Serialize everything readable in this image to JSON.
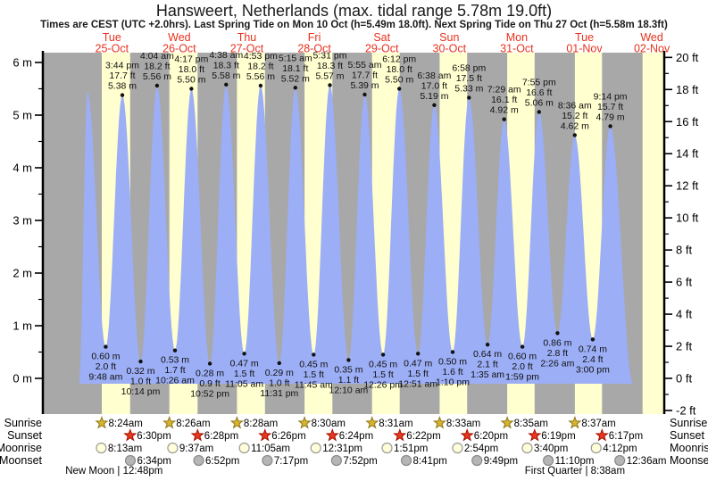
{
  "chart_data": {
    "type": "area",
    "title": "Hansweert, Netherlands (max. tidal range 5.78m 19.0ft)",
    "subtitle": "Times are CEST (UTC +2.0hrs). Last Spring Tide on Mon 10 Oct (h=5.49m 18.0ft). Next Spring Tide on Thu 27 Oct (h=5.58m 18.3ft)",
    "time_origin": "25-Oct 00:00",
    "hours_domain": [
      -12.5,
      208.4
    ],
    "x_axis": {
      "days": [
        {
          "weekday": "Tue",
          "date": "25-Oct"
        },
        {
          "weekday": "Wed",
          "date": "26-Oct"
        },
        {
          "weekday": "Thu",
          "date": "27-Oct"
        },
        {
          "weekday": "Fri",
          "date": "28-Oct"
        },
        {
          "weekday": "Sat",
          "date": "29-Oct"
        },
        {
          "weekday": "Sun",
          "date": "30-Oct"
        },
        {
          "weekday": "Mon",
          "date": "31-Oct"
        },
        {
          "weekday": "Tue",
          "date": "01-Nov"
        },
        {
          "weekday": "Wed",
          "date": "02-Nov"
        }
      ]
    },
    "y_axis_left": {
      "unit": "m",
      "ticks": [
        6,
        5,
        4,
        3,
        2,
        1,
        0
      ],
      "minor_step": 0.5
    },
    "y_axis_right": {
      "unit": "ft",
      "ticks": [
        20,
        18,
        16,
        14,
        12,
        10,
        8,
        6,
        4,
        2,
        0,
        -2
      ],
      "minor_step": 1
    },
    "tide_events": [
      {
        "t": 0.3,
        "type": "edge",
        "m": -0.1
      },
      {
        "t": 3.33,
        "type": "high",
        "m": 5.44
      },
      {
        "t": 9.8,
        "type": "low",
        "m": 0.6,
        "ft": 2.0,
        "time": "9:48 am"
      },
      {
        "t": 15.73,
        "type": "high",
        "m": 5.38,
        "ft": 17.7,
        "time": "3:44 pm"
      },
      {
        "t": 22.23,
        "type": "low",
        "m": 0.32,
        "ft": 1.0,
        "time": "10:14 pm"
      },
      {
        "t": 28.07,
        "type": "high",
        "m": 5.56,
        "ft": 18.2,
        "time": "4:04 am"
      },
      {
        "t": 34.43,
        "type": "low",
        "m": 0.53,
        "ft": 1.7,
        "time": "10:26 am"
      },
      {
        "t": 40.28,
        "type": "high",
        "m": 5.5,
        "ft": 18.0,
        "time": "4:17 pm"
      },
      {
        "t": 46.87,
        "type": "low",
        "m": 0.28,
        "ft": 0.9,
        "time": "10:52 pm"
      },
      {
        "t": 52.63,
        "type": "high",
        "m": 5.58,
        "ft": 18.3,
        "time": "4:38 am"
      },
      {
        "t": 59.08,
        "type": "low",
        "m": 0.47,
        "ft": 1.5,
        "time": "11:05 am"
      },
      {
        "t": 64.88,
        "type": "high",
        "m": 5.56,
        "ft": 18.2,
        "time": "4:53 pm"
      },
      {
        "t": 71.52,
        "type": "low",
        "m": 0.29,
        "ft": 1.0,
        "time": "11:31 pm"
      },
      {
        "t": 77.25,
        "type": "high",
        "m": 5.52,
        "ft": 18.1,
        "time": "5:15 am"
      },
      {
        "t": 83.75,
        "type": "low",
        "m": 0.45,
        "ft": 1.5,
        "time": "11:45 am"
      },
      {
        "t": 89.52,
        "type": "high",
        "m": 5.57,
        "ft": 18.3,
        "time": "5:31 pm"
      },
      {
        "t": 96.17,
        "type": "low",
        "m": 0.35,
        "ft": 1.1,
        "time": "12:10 am"
      },
      {
        "t": 101.92,
        "type": "high",
        "m": 5.39,
        "ft": 17.7,
        "time": "5:55 am"
      },
      {
        "t": 108.43,
        "type": "low",
        "m": 0.45,
        "ft": 1.5,
        "time": "12:26 pm"
      },
      {
        "t": 114.2,
        "type": "high",
        "m": 5.5,
        "ft": 18.0,
        "time": "6:12 pm"
      },
      {
        "t": 120.85,
        "type": "low",
        "m": 0.47,
        "ft": 1.5,
        "time": "12:51 am"
      },
      {
        "t": 126.63,
        "type": "high",
        "m": 5.19,
        "ft": 17.0,
        "time": "6:38 am"
      },
      {
        "t": 133.17,
        "type": "low",
        "m": 0.5,
        "ft": 1.6,
        "time": "1:10 pm"
      },
      {
        "t": 138.97,
        "type": "high",
        "m": 5.33,
        "ft": 17.5,
        "time": "6:58 pm"
      },
      {
        "t": 145.58,
        "type": "low",
        "m": 0.64,
        "ft": 2.1,
        "time": "1:35 am"
      },
      {
        "t": 151.48,
        "type": "high",
        "m": 4.92,
        "ft": 16.1,
        "time": "7:29 am"
      },
      {
        "t": 157.98,
        "type": "low",
        "m": 0.6,
        "ft": 2.0,
        "time": "1:59 pm"
      },
      {
        "t": 163.92,
        "type": "high",
        "m": 5.06,
        "ft": 16.6,
        "time": "7:55 pm"
      },
      {
        "t": 170.43,
        "type": "low",
        "m": 0.86,
        "ft": 2.8,
        "time": "2:26 am"
      },
      {
        "t": 176.6,
        "type": "high",
        "m": 4.62,
        "ft": 15.2,
        "time": "8:36 am"
      },
      {
        "t": 183.0,
        "type": "low",
        "m": 0.74,
        "ft": 2.4,
        "time": "3:00 pm"
      },
      {
        "t": 189.23,
        "type": "high",
        "m": 4.79,
        "ft": 15.7,
        "time": "9:14 pm"
      },
      {
        "t": 197.3,
        "type": "edge",
        "m": -0.1
      }
    ],
    "daylight_bands": [
      {
        "start": 8.4,
        "end": 18.5
      },
      {
        "start": 32.43,
        "end": 42.47
      },
      {
        "start": 56.47,
        "end": 66.43
      },
      {
        "start": 80.5,
        "end": 90.4
      },
      {
        "start": 104.52,
        "end": 114.37
      },
      {
        "start": 128.55,
        "end": 138.33
      },
      {
        "start": 152.58,
        "end": 162.32
      },
      {
        "start": 176.62,
        "end": 186.28
      },
      {
        "start": 200.7,
        "end": 208.4
      }
    ]
  },
  "sun_moon": {
    "rows": [
      {
        "id": "sunrise",
        "label": "Sunrise",
        "icon": "sunrise-star",
        "entries": [
          {
            "t": 8.4,
            "text": "8:24am"
          },
          {
            "t": 32.43,
            "text": "8:26am"
          },
          {
            "t": 56.47,
            "text": "8:28am"
          },
          {
            "t": 80.5,
            "text": "8:30am"
          },
          {
            "t": 104.52,
            "text": "8:31am"
          },
          {
            "t": 128.55,
            "text": "8:33am"
          },
          {
            "t": 152.58,
            "text": "8:35am"
          },
          {
            "t": 176.62,
            "text": "8:37am"
          }
        ]
      },
      {
        "id": "sunset",
        "label": "Sunset",
        "icon": "sunset-star",
        "entries": [
          {
            "t": 18.5,
            "text": "6:30pm"
          },
          {
            "t": 42.47,
            "text": "6:28pm"
          },
          {
            "t": 66.43,
            "text": "6:26pm"
          },
          {
            "t": 90.4,
            "text": "6:24pm"
          },
          {
            "t": 114.37,
            "text": "6:22pm"
          },
          {
            "t": 138.33,
            "text": "6:20pm"
          },
          {
            "t": 162.32,
            "text": "6:19pm"
          },
          {
            "t": 186.28,
            "text": "6:17pm"
          }
        ]
      },
      {
        "id": "moonrise",
        "label": "Moonrise",
        "icon": "moonrise-circle",
        "entries": [
          {
            "t": 8.22,
            "text": "8:13am"
          },
          {
            "t": 33.62,
            "text": "9:37am"
          },
          {
            "t": 59.08,
            "text": "11:05am"
          },
          {
            "t": 84.52,
            "text": "12:31pm"
          },
          {
            "t": 109.85,
            "text": "1:51pm"
          },
          {
            "t": 134.9,
            "text": "2:54pm"
          },
          {
            "t": 159.67,
            "text": "3:40pm"
          },
          {
            "t": 184.2,
            "text": "4:12pm"
          }
        ]
      },
      {
        "id": "moonset",
        "label": "Moonset",
        "icon": "moonset-circle",
        "entries": [
          {
            "t": 18.57,
            "text": "6:34pm"
          },
          {
            "t": 42.87,
            "text": "6:52pm"
          },
          {
            "t": 67.28,
            "text": "7:17pm"
          },
          {
            "t": 91.87,
            "text": "7:52pm"
          },
          {
            "t": 116.68,
            "text": "8:41pm"
          },
          {
            "t": 141.82,
            "text": "9:49pm"
          },
          {
            "t": 167.17,
            "text": "11:10pm"
          },
          {
            "t": 192.6,
            "text": "12:36am"
          }
        ]
      }
    ],
    "phases": [
      {
        "t": 12.8,
        "text": "New Moon | 12:48pm"
      },
      {
        "t": 176.63,
        "text": "First Quarter | 8:38am"
      }
    ]
  },
  "colors": {
    "night_band": "#a8a8a8",
    "day_band": "#ffffd0",
    "tide_fill": "#9caef5",
    "day_label": "#e8321e",
    "axis": "#000000",
    "annotation": "#111111",
    "sunrise_star_fill": "#d9b430",
    "sunrise_star_stroke": "#8f7718",
    "sunset_star_fill": "#e8391f",
    "sunset_star_stroke": "#a51000",
    "moonrise_fill": "#ffffd8",
    "moonrise_stroke": "#9a9a9a",
    "moonset_fill": "#b5b5b5",
    "moonset_stroke": "#8a8a8a"
  }
}
